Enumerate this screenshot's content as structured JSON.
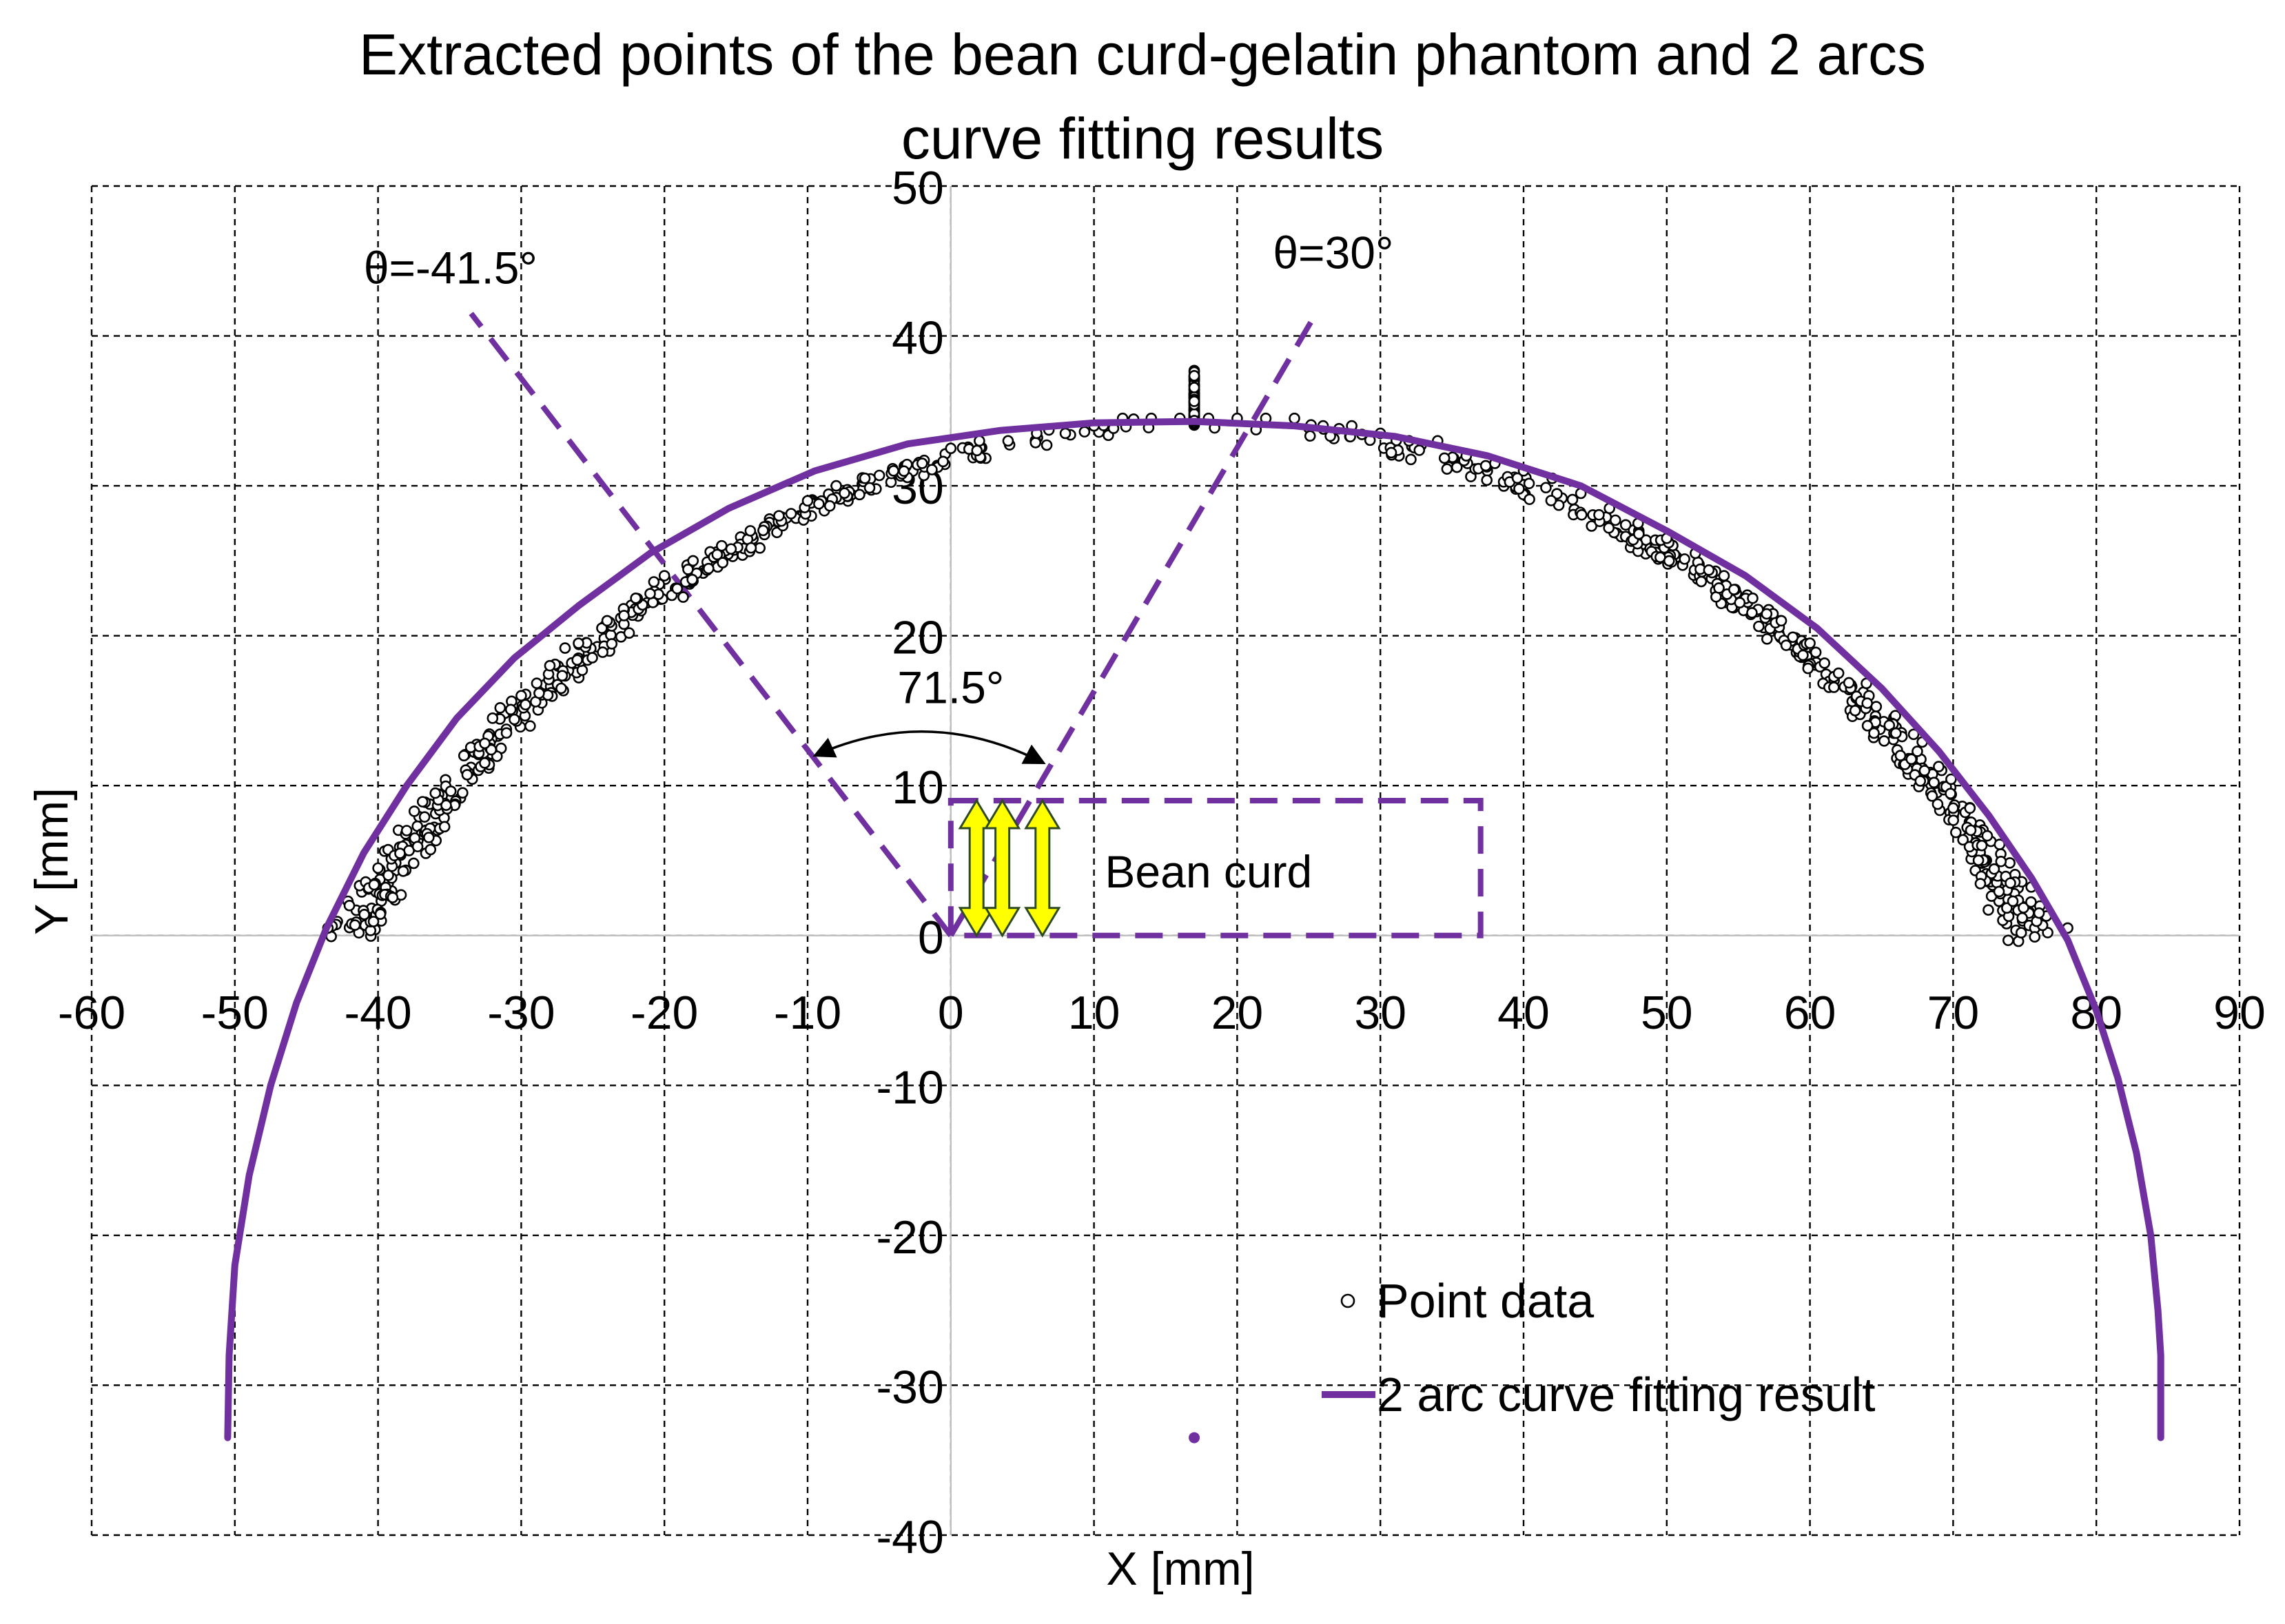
{
  "chart_data": {
    "type": "scatter",
    "title_lines": [
      "Extracted points of the bean curd-gelatin phantom and 2 arcs",
      "curve fitting results"
    ],
    "xlabel": "X [mm]",
    "ylabel": "Y [mm]",
    "xlim": [
      -60,
      90
    ],
    "ylim": [
      -40,
      50
    ],
    "xticks": [
      -60,
      -50,
      -40,
      -30,
      -20,
      -10,
      0,
      10,
      20,
      30,
      40,
      50,
      60,
      70,
      80,
      90
    ],
    "yticks": [
      -40,
      -30,
      -20,
      -10,
      0,
      10,
      20,
      30,
      40,
      50
    ],
    "xtick_labels": [
      "-60",
      "-50",
      "-40",
      "-30",
      "-20",
      "-10",
      "0",
      "10",
      "20",
      "30",
      "40",
      "50",
      "60",
      "70",
      "80",
      "90"
    ],
    "ytick_labels": [
      "-40",
      "-30",
      "-20",
      "-10",
      "0",
      "10",
      "20",
      "30",
      "40",
      "50"
    ],
    "grid": true,
    "legend_position": "bottom-right",
    "series": [
      {
        "name": "Point data",
        "kind": "scatter",
        "marker": "open-circle",
        "color": "#000000",
        "arc": {
          "center": [
            17,
            -33.5
          ],
          "radius": 67.5,
          "y_min": 0,
          "y_max": 37.5
        },
        "x": [
          -43.5,
          -42.0,
          -40.0,
          -38.0,
          -36.0,
          -34.0,
          -32.0,
          -30.0,
          -28.0,
          -26.0,
          -24.0,
          -22.0,
          -20.0,
          -18.0,
          -16.0,
          -14.0,
          -12.0,
          -10.0,
          -8.0,
          -6.0,
          -4.0,
          -2.0,
          0.0,
          2.0,
          4.0,
          6.0,
          8.0,
          10.0,
          12.0,
          14.0,
          16.0,
          18.0,
          20.0,
          22.0,
          24.0,
          26.0,
          28.0,
          30.0,
          32.0,
          34.0,
          36.0,
          38.0,
          40.0,
          42.0,
          44.0,
          46.0,
          48.0,
          50.0,
          52.0,
          54.0,
          56.0,
          58.0,
          60.0,
          62.0,
          64.0,
          66.0,
          68.0,
          70.0,
          72.0,
          74.0,
          76.0,
          78.0
        ],
        "y": [
          0.5,
          2.0,
          4.5,
          7.0,
          9.5,
          12.0,
          14.5,
          16.0,
          18.0,
          19.5,
          21.0,
          22.5,
          24.0,
          25.0,
          26.0,
          27.0,
          28.0,
          29.0,
          30.0,
          30.5,
          31.0,
          31.5,
          32.5,
          33.0,
          33.0,
          33.5,
          33.5,
          34.0,
          34.5,
          34.5,
          34.5,
          34.5,
          34.5,
          34.5,
          34.5,
          34.0,
          34.0,
          33.5,
          33.0,
          33.0,
          32.0,
          31.5,
          31.0,
          30.5,
          29.5,
          28.5,
          27.5,
          26.5,
          25.5,
          24.0,
          22.5,
          21.0,
          19.5,
          17.5,
          15.5,
          13.5,
          11.0,
          8.5,
          6.0,
          3.5,
          1.5,
          0.5
        ],
        "outliers": [
          {
            "x": 17,
            "y": -33.5
          }
        ]
      },
      {
        "name": "2 arc curve fitting result",
        "kind": "line",
        "color": "#7030a0",
        "x": [
          -50.5,
          -50.4,
          -50.0,
          -49.0,
          -47.5,
          -45.7,
          -43.6,
          -41.0,
          -38.0,
          -34.5,
          -30.5,
          -26.0,
          -21.0,
          -15.5,
          -9.5,
          -3.0,
          3.5,
          10.0,
          17.0,
          24.0,
          31.0,
          37.5,
          44.0,
          50.0,
          55.5,
          60.5,
          65.0,
          69.0,
          72.5,
          75.5,
          78.0,
          80.0,
          81.5,
          82.8,
          83.8,
          84.3,
          84.5,
          84.5
        ],
        "y": [
          -33.5,
          -28.0,
          -22.0,
          -16.0,
          -10.0,
          -4.5,
          0.5,
          5.5,
          10.0,
          14.5,
          18.5,
          22.0,
          25.5,
          28.5,
          31.0,
          32.8,
          33.7,
          34.2,
          34.3,
          34.0,
          33.3,
          32.0,
          30.0,
          27.0,
          24.0,
          20.5,
          16.5,
          12.3,
          8.0,
          3.8,
          -0.3,
          -5.0,
          -9.5,
          -14.5,
          -20.0,
          -25.0,
          -28.0,
          -33.5
        ]
      }
    ],
    "annotations": {
      "angle_left": {
        "label": "θ=-41.5°",
        "line_from": [
          0,
          0
        ],
        "line_to": [
          -33.5,
          41.5
        ]
      },
      "angle_right": {
        "label": "θ=30°",
        "line_from": [
          0,
          0
        ],
        "line_to": [
          25.5,
          41.5
        ]
      },
      "span_label": "71.5°",
      "span_arc_ends": [
        [
          -9.5,
          12
        ],
        [
          6.5,
          11.5
        ]
      ],
      "region_label": "Bean curd",
      "region_x": [
        0,
        37
      ],
      "region_y": [
        0,
        9
      ],
      "probe_arrows_x": [
        1.8,
        3.6,
        6.4
      ],
      "probe_arrow_y": [
        0,
        9
      ],
      "probe_color": "#ffff00",
      "guide_color": "#7030a0"
    }
  }
}
